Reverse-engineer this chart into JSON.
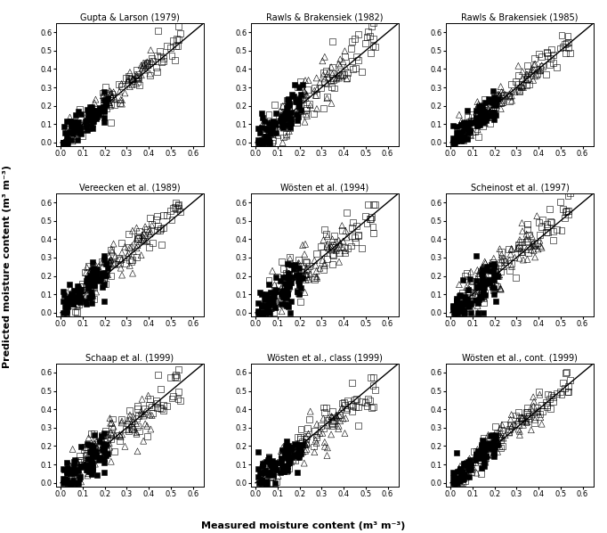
{
  "titles": [
    "Gupta & Larson (1979)",
    "Rawls & Brakensiek (1982)",
    "Rawls & Brakensiek (1985)",
    "Vereecken et al. (1989)",
    "Wösten et al. (1994)",
    "Scheinost et al. (1997)",
    "Schaap et al. (1999)",
    "Wösten et al., class (1999)",
    "Wösten et al., cont. (1999)"
  ],
  "xlabel": "Measured moisture content (m³ m⁻³)",
  "ylabel": "Predicted moisture content (m³ m⁻³)",
  "xlim": [
    -0.02,
    0.65
  ],
  "ylim": [
    -0.02,
    0.65
  ],
  "xticks": [
    0.0,
    0.1,
    0.2,
    0.3,
    0.4,
    0.5,
    0.6
  ],
  "yticks": [
    0,
    0.1,
    0.2,
    0.3,
    0.4,
    0.5,
    0.6
  ],
  "line_color": "black",
  "background_color": "white",
  "nrows": 3,
  "ncols": 3,
  "random_seed": 42,
  "n_points": 80,
  "subplot_params": [
    {
      "slopes": [
        1.0,
        1.0,
        1.0
      ],
      "intercepts": [
        0.01,
        0.01,
        0.0
      ],
      "noises": [
        0.04,
        0.04,
        0.04
      ]
    },
    {
      "slopes": [
        1.05,
        1.05,
        1.0
      ],
      "intercepts": [
        0.0,
        0.0,
        0.01
      ],
      "noises": [
        0.06,
        0.06,
        0.05
      ]
    },
    {
      "slopes": [
        1.0,
        0.98,
        0.95
      ],
      "intercepts": [
        0.01,
        0.01,
        0.0
      ],
      "noises": [
        0.04,
        0.04,
        0.04
      ]
    },
    {
      "slopes": [
        1.05,
        1.03,
        1.0
      ],
      "intercepts": [
        0.01,
        0.02,
        0.01
      ],
      "noises": [
        0.05,
        0.05,
        0.05
      ]
    },
    {
      "slopes": [
        0.95,
        0.9,
        0.88
      ],
      "intercepts": [
        0.02,
        0.02,
        0.01
      ],
      "noises": [
        0.06,
        0.06,
        0.06
      ]
    },
    {
      "slopes": [
        1.0,
        1.0,
        1.0
      ],
      "intercepts": [
        0.01,
        0.01,
        0.0
      ],
      "noises": [
        0.06,
        0.06,
        0.06
      ]
    },
    {
      "slopes": [
        0.95,
        0.9,
        0.88
      ],
      "intercepts": [
        0.01,
        0.02,
        0.01
      ],
      "noises": [
        0.06,
        0.06,
        0.06
      ]
    },
    {
      "slopes": [
        0.9,
        0.85,
        0.8
      ],
      "intercepts": [
        0.02,
        0.02,
        0.02
      ],
      "noises": [
        0.05,
        0.05,
        0.05
      ]
    },
    {
      "slopes": [
        1.0,
        1.0,
        0.98
      ],
      "intercepts": [
        0.01,
        0.01,
        0.01
      ],
      "noises": [
        0.04,
        0.04,
        0.04
      ]
    }
  ],
  "series_ranges": [
    [
      0.05,
      0.55
    ],
    [
      0.03,
      0.42
    ],
    [
      0.01,
      0.22
    ]
  ],
  "marker_size_sq": 5,
  "marker_size_tri": 5,
  "marker_size_circ": 5,
  "title_fontsize": 7,
  "tick_fontsize": 6,
  "label_fontsize": 8
}
